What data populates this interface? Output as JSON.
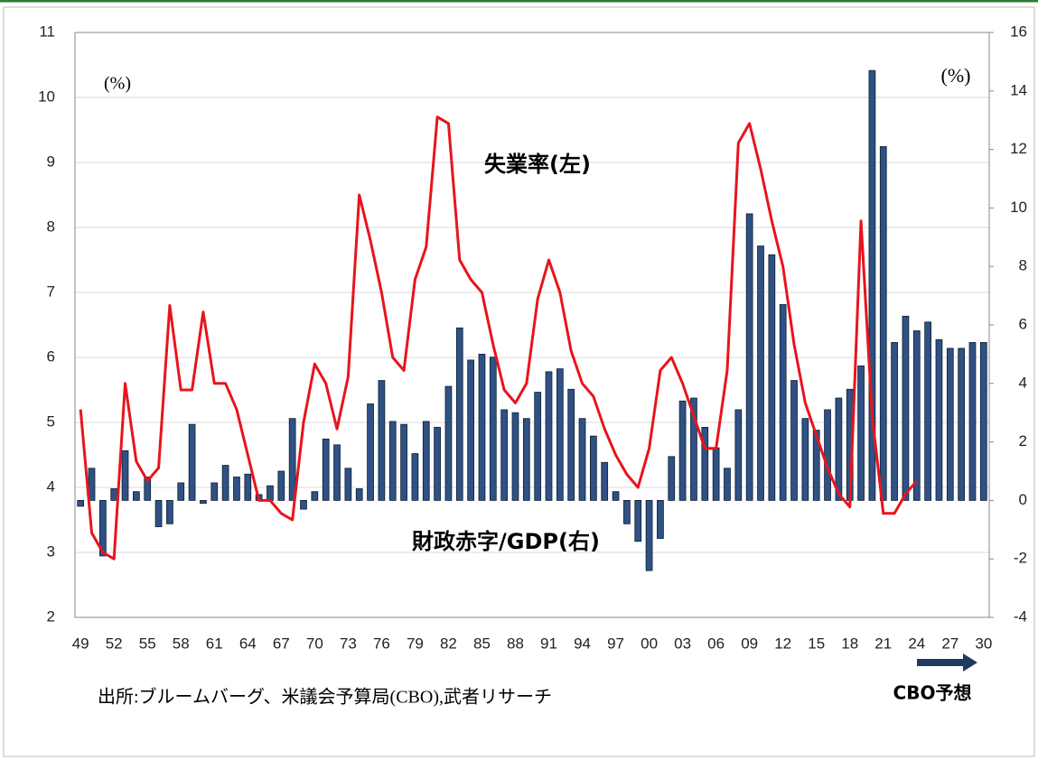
{
  "chart_data": {
    "type": "combo",
    "categories": [
      "49",
      null,
      null,
      "52",
      null,
      null,
      "55",
      null,
      null,
      "58",
      null,
      null,
      "61",
      null,
      null,
      "64",
      null,
      null,
      "67",
      null,
      null,
      "70",
      null,
      null,
      "73",
      null,
      null,
      "76",
      null,
      null,
      "79",
      null,
      null,
      "82",
      null,
      null,
      "85",
      null,
      null,
      "88",
      null,
      null,
      "91",
      null,
      null,
      "94",
      null,
      null,
      "97",
      null,
      null,
      "00",
      null,
      null,
      "03",
      null,
      null,
      "06",
      null,
      null,
      "09",
      null,
      null,
      "12",
      null,
      null,
      "15",
      null,
      null,
      "18",
      null,
      null,
      "21",
      null,
      null,
      "24",
      null,
      null,
      "27",
      null,
      null,
      "30"
    ],
    "ylim": [
      2,
      11
    ],
    "yticks": [
      2,
      3,
      4,
      5,
      6,
      7,
      8,
      9,
      10,
      11
    ],
    "y2lim": [
      -4,
      16
    ],
    "y2ticks": [
      -4,
      -2,
      0,
      2,
      4,
      6,
      8,
      10,
      12,
      14,
      16
    ],
    "y_unit": "(%)",
    "y2_unit": "(%)",
    "series": [
      {
        "name": "財政赤字/GDP(右)",
        "type": "bar",
        "axis": "y2",
        "color": "#2f5183",
        "values": [
          -0.2,
          1.1,
          -1.9,
          0.4,
          1.7,
          0.3,
          0.8,
          -0.9,
          -0.8,
          0.6,
          2.6,
          -0.1,
          0.6,
          1.2,
          0.8,
          0.9,
          0.2,
          0.5,
          1.0,
          2.8,
          -0.3,
          0.3,
          2.1,
          1.9,
          1.1,
          0.4,
          3.3,
          4.1,
          2.7,
          2.6,
          1.6,
          2.7,
          2.5,
          3.9,
          5.9,
          4.8,
          5.0,
          4.9,
          3.1,
          3.0,
          2.8,
          3.7,
          4.4,
          4.5,
          3.8,
          2.8,
          2.2,
          1.3,
          0.3,
          -0.8,
          -1.4,
          -2.4,
          -1.3,
          1.5,
          3.4,
          3.5,
          2.5,
          1.8,
          1.1,
          3.1,
          9.8,
          8.7,
          8.4,
          6.7,
          4.1,
          2.8,
          2.4,
          3.1,
          3.5,
          3.8,
          4.6,
          14.7,
          12.1,
          5.4,
          6.3,
          5.8,
          6.1,
          5.5,
          5.2,
          5.2,
          5.4,
          5.4
        ]
      },
      {
        "name": "失業率(左)",
        "type": "line",
        "color": "#e8141c",
        "values": [
          5.2,
          3.3,
          3.0,
          2.9,
          5.6,
          4.4,
          4.1,
          4.3,
          6.8,
          5.5,
          5.5,
          6.7,
          5.6,
          5.6,
          5.2,
          4.5,
          3.8,
          3.8,
          3.6,
          3.5,
          5.0,
          5.9,
          5.6,
          4.9,
          5.7,
          8.5,
          7.8,
          7.0,
          6.0,
          5.8,
          7.2,
          7.7,
          9.7,
          9.6,
          7.5,
          7.2,
          7.0,
          6.2,
          5.5,
          5.3,
          5.6,
          6.9,
          7.5,
          7.0,
          6.1,
          5.6,
          5.4,
          4.9,
          4.5,
          4.2,
          4.0,
          4.6,
          5.8,
          6.0,
          5.6,
          5.1,
          4.6,
          4.6,
          5.8,
          9.3,
          9.6,
          8.9,
          8.1,
          7.4,
          6.2,
          5.3,
          4.8,
          4.3,
          3.9,
          3.7,
          8.1,
          5.1,
          3.6,
          3.6,
          3.9,
          4.1,
          null,
          null,
          null,
          null,
          null,
          null
        ]
      }
    ],
    "grid": true,
    "forecast_label": "CBO予想",
    "source": "出所:ブルームバーグ、米議会予算局(CBO),武者リサーチ"
  }
}
